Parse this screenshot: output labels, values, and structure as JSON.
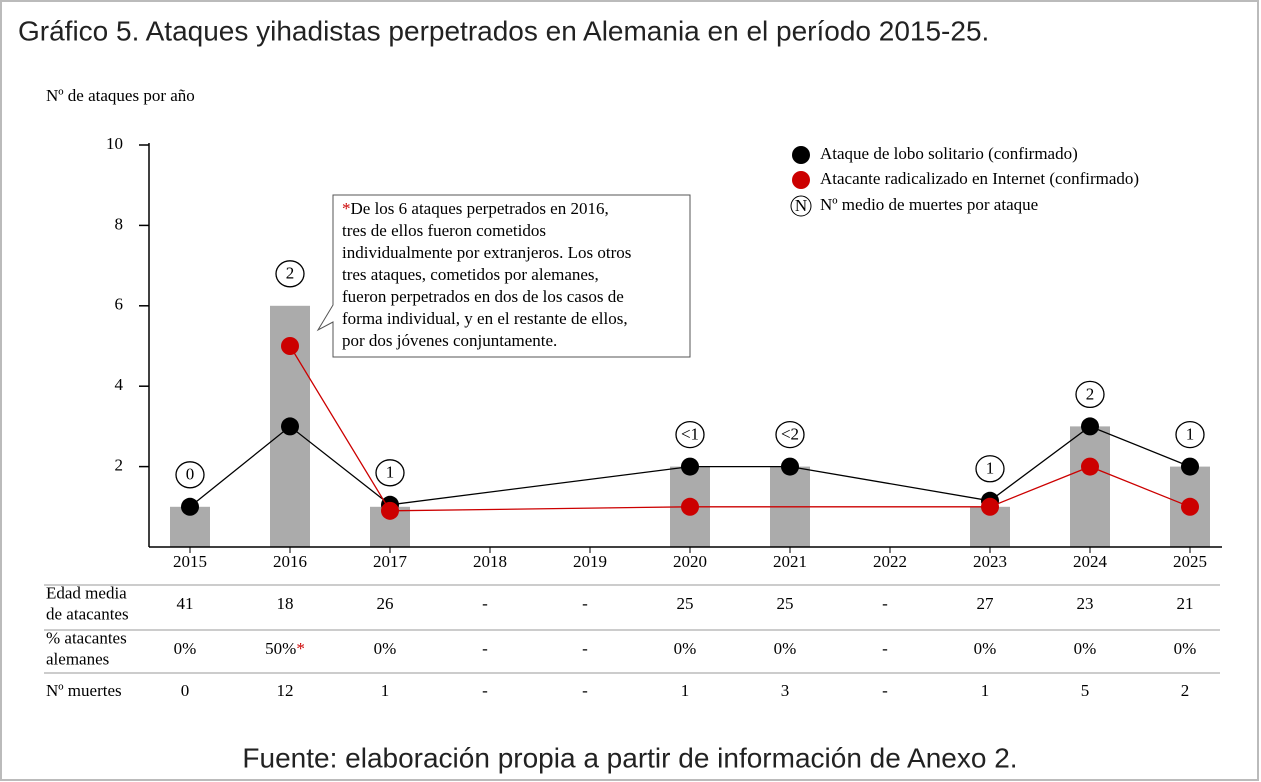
{
  "chart_data": {
    "type": "bar-line",
    "title": "Gráfico 5. Ataques yihadistas perpetrados en Alemania en el período 2015-25.",
    "y_label": "Nº de ataques por año",
    "x": [
      2015,
      2016,
      2017,
      2018,
      2019,
      2020,
      2021,
      2022,
      2023,
      2024,
      2025
    ],
    "xlim": [
      2014.5,
      2025.5
    ],
    "values": [
      1,
      6,
      1,
      null,
      null,
      2,
      2,
      null,
      1,
      3,
      2
    ],
    "color": "#ababab",
    "series": [
      {
        "name": "Ataque de lobo solitario (confirmado)",
        "color": "#000000",
        "x": [
          2015,
          2016,
          2017,
          2020,
          2021,
          2023,
          2024,
          2025
        ],
        "values": [
          1,
          3,
          1.05,
          2,
          2,
          1.15,
          3,
          2
        ]
      },
      {
        "name": "Atacante radicalizado en Internet (confirmado)",
        "color": "#cc0000",
        "x": [
          2016,
          2017,
          2020,
          2023,
          2024,
          2025
        ],
        "values": [
          5,
          0.9,
          1,
          1,
          2,
          1
        ]
      }
    ],
    "death_legend": {
      "symbol": "N",
      "name": "Nº medio de muertes por ataque"
    },
    "death_labels": [
      "0",
      "2",
      "1",
      null,
      null,
      "<1",
      "<2",
      null,
      "1",
      "2",
      "1"
    ],
    "ylim": [
      0,
      10
    ],
    "yticks": [
      2,
      4,
      6,
      8,
      10
    ],
    "annotation": {
      "marker": "*",
      "lines": [
        "De los 6 ataques perpetrados en 2016,",
        "tres de ellos fueron cometidos",
        "individualmente por extranjeros. Los otros",
        "tres ataques, cometidos por alemanes,",
        "fueron perpetrados en dos de los casos de",
        "forma individual, y en el restante de ellos,",
        "por dos jóvenes conjuntamente."
      ]
    },
    "table": {
      "rows": [
        {
          "label": [
            "Edad media",
            "de atacantes"
          ],
          "cells": [
            "41",
            "18",
            "26",
            "-",
            "-",
            "25",
            "25",
            "-",
            "27",
            "23",
            "21"
          ]
        },
        {
          "label": [
            "% atacantes",
            "alemanes"
          ],
          "cells": [
            "0%",
            "50%",
            "0%",
            "-",
            "-",
            "0%",
            "0%",
            "-",
            "0%",
            "0%",
            "0%"
          ],
          "marker_cell": 1,
          "marker": "*"
        },
        {
          "label": [
            "Nº muertes"
          ],
          "cells": [
            "0",
            "12",
            "1",
            "-",
            "-",
            "1",
            "3",
            "-",
            "1",
            "5",
            "2"
          ]
        }
      ]
    },
    "source": "Fuente: elaboración propia a partir de información de Anexo 2."
  }
}
